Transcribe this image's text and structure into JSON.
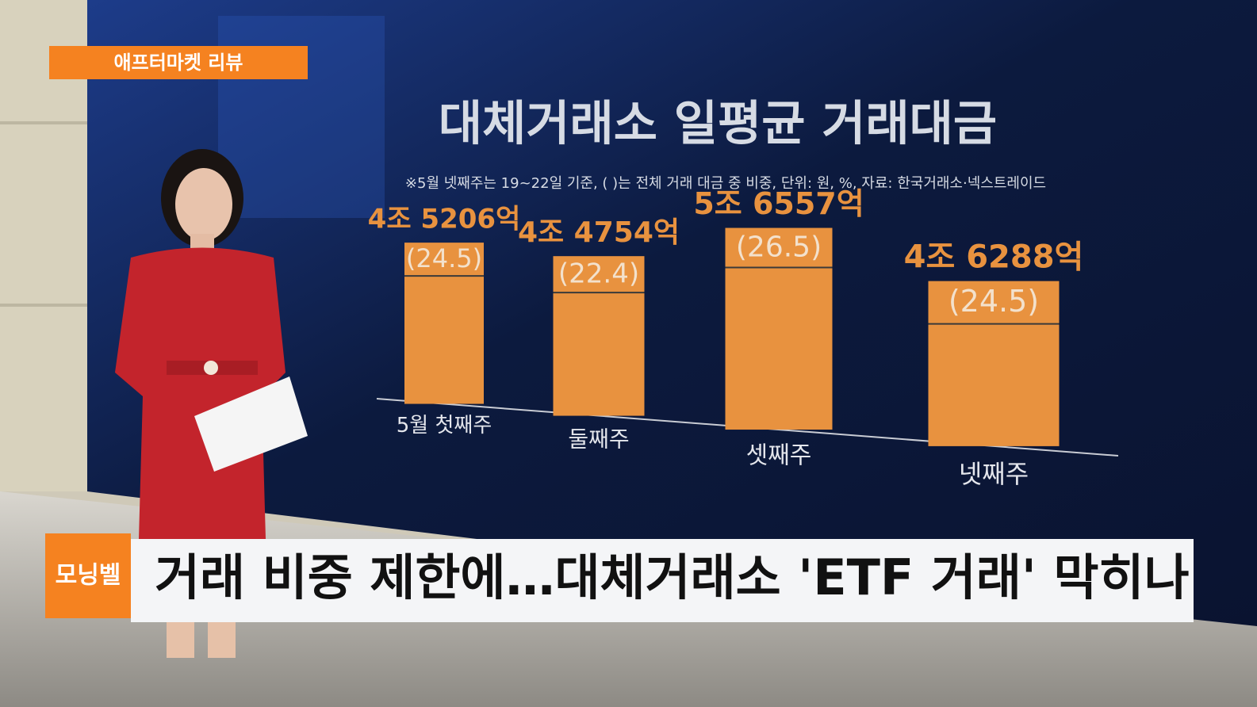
{
  "broadcast": {
    "segment_label": "애프터마켓 리뷰",
    "program_logo": "모닝벨",
    "headline": "거래 비중 제한에…대체거래소 'ETF 거래' 막히나"
  },
  "chart_data": {
    "type": "bar",
    "title": "대체거래소 일평균 거래대금",
    "note": "※5월 넷째주는 19~22일 기준, ( )는 전체 거래 대금 중 비중, 단위: 원, %, 자료: 한국거래소·넥스트레이드",
    "categories": [
      "5월 첫째주",
      "둘째주",
      "셋째주",
      "넷째주"
    ],
    "values": [
      45206,
      44754,
      56557,
      46288
    ],
    "value_labels": [
      "4조 5206억",
      "4조 4754억",
      "5조 6557억",
      "4조 6288억"
    ],
    "share_values": [
      24.5,
      22.4,
      26.5,
      24.5
    ],
    "share_labels": [
      "(24.5)",
      "(22.4)",
      "(26.5)",
      "(24.5)"
    ],
    "color": "#e8923f"
  }
}
